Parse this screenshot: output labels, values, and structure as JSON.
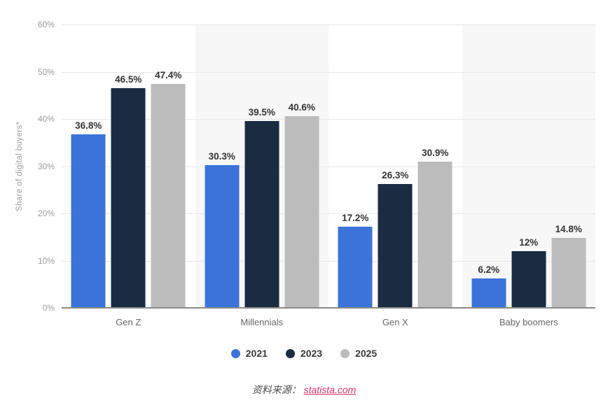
{
  "chart_data": {
    "type": "bar",
    "title": "",
    "xlabel": "",
    "ylabel": "Share of digital buyers*",
    "ylim": [
      0,
      60
    ],
    "yticks": [
      {
        "value": 0,
        "label": "0%"
      },
      {
        "value": 10,
        "label": "10%"
      },
      {
        "value": 20,
        "label": "20%"
      },
      {
        "value": 30,
        "label": "30%"
      },
      {
        "value": 40,
        "label": "40%"
      },
      {
        "value": 50,
        "label": "50%"
      },
      {
        "value": 60,
        "label": "60%"
      }
    ],
    "grid": true,
    "legend_position": "bottom",
    "categories": [
      "Gen Z",
      "Millennials",
      "Gen X",
      "Baby boomers"
    ],
    "series": [
      {
        "name": "2021",
        "color": "#3b73d9",
        "values": [
          36.8,
          30.3,
          17.2,
          6.2
        ],
        "labels": [
          "36.8%",
          "30.3%",
          "17.2%",
          "6.2%"
        ]
      },
      {
        "name": "2023",
        "color": "#1a2b42",
        "values": [
          46.5,
          39.5,
          26.3,
          12
        ],
        "labels": [
          "46.5%",
          "39.5%",
          "26.3%",
          "12%"
        ]
      },
      {
        "name": "2025",
        "color": "#bcbcbc",
        "values": [
          47.4,
          40.6,
          30.9,
          14.8
        ],
        "labels": [
          "47.4%",
          "40.6%",
          "30.9%",
          "14.8%"
        ]
      }
    ]
  },
  "footer": {
    "source_label": "资料来源：",
    "source_link": "statista.com"
  },
  "colors": {
    "band_alt": "#f7f7f8",
    "gridline": "#e7e7e7",
    "axis_line": "#8a8a8a",
    "tick_text": "#9b9b9b",
    "value_text": "#333333",
    "category_text": "#666666",
    "link": "#d6336c"
  }
}
